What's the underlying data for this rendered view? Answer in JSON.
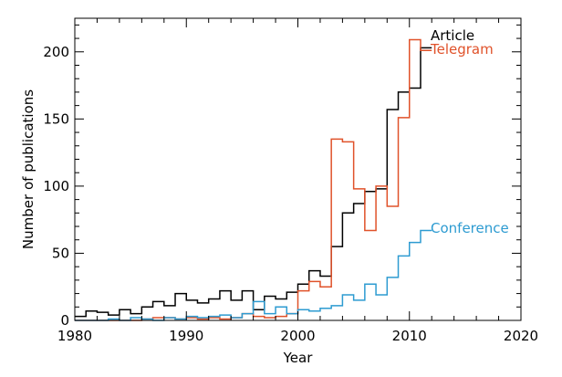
{
  "chart_data": {
    "type": "histogram-step",
    "xlabel": "Year",
    "ylabel": "Number of publications",
    "xlim": [
      1980,
      2020
    ],
    "ylim": [
      0,
      225
    ],
    "xticks": [
      1980,
      1990,
      2000,
      2010,
      2020
    ],
    "yticks": [
      0,
      50,
      100,
      150,
      200
    ],
    "x_minor_tick_step": 2,
    "y_minor_tick_step": 10,
    "grid": false,
    "legend_placement": "inline, near line ends",
    "bin_start": 1980,
    "bin_width": 1,
    "series": [
      {
        "name": "Article",
        "color": "#000000",
        "values": [
          3,
          7,
          6,
          4,
          8,
          5,
          10,
          14,
          11,
          20,
          15,
          13,
          16,
          22,
          15,
          22,
          8,
          18,
          16,
          21,
          27,
          37,
          33,
          55,
          80,
          87,
          96,
          98,
          157,
          170,
          173,
          203
        ]
      },
      {
        "name": "Telegram",
        "color": "#e0522a",
        "values": [
          0,
          0,
          0,
          0,
          0,
          0,
          1,
          2,
          2,
          1,
          2,
          1,
          2,
          1,
          2,
          5,
          3,
          2,
          3,
          5,
          22,
          29,
          25,
          135,
          133,
          98,
          67,
          100,
          85,
          151,
          209,
          201
        ]
      },
      {
        "name": "Conference",
        "color": "#2d9bd1",
        "values": [
          0,
          0,
          0,
          1,
          0,
          2,
          1,
          0,
          2,
          1,
          3,
          2,
          3,
          4,
          2,
          5,
          14,
          5,
          10,
          5,
          8,
          7,
          9,
          11,
          19,
          15,
          27,
          19,
          32,
          48,
          58,
          67
        ]
      }
    ]
  }
}
